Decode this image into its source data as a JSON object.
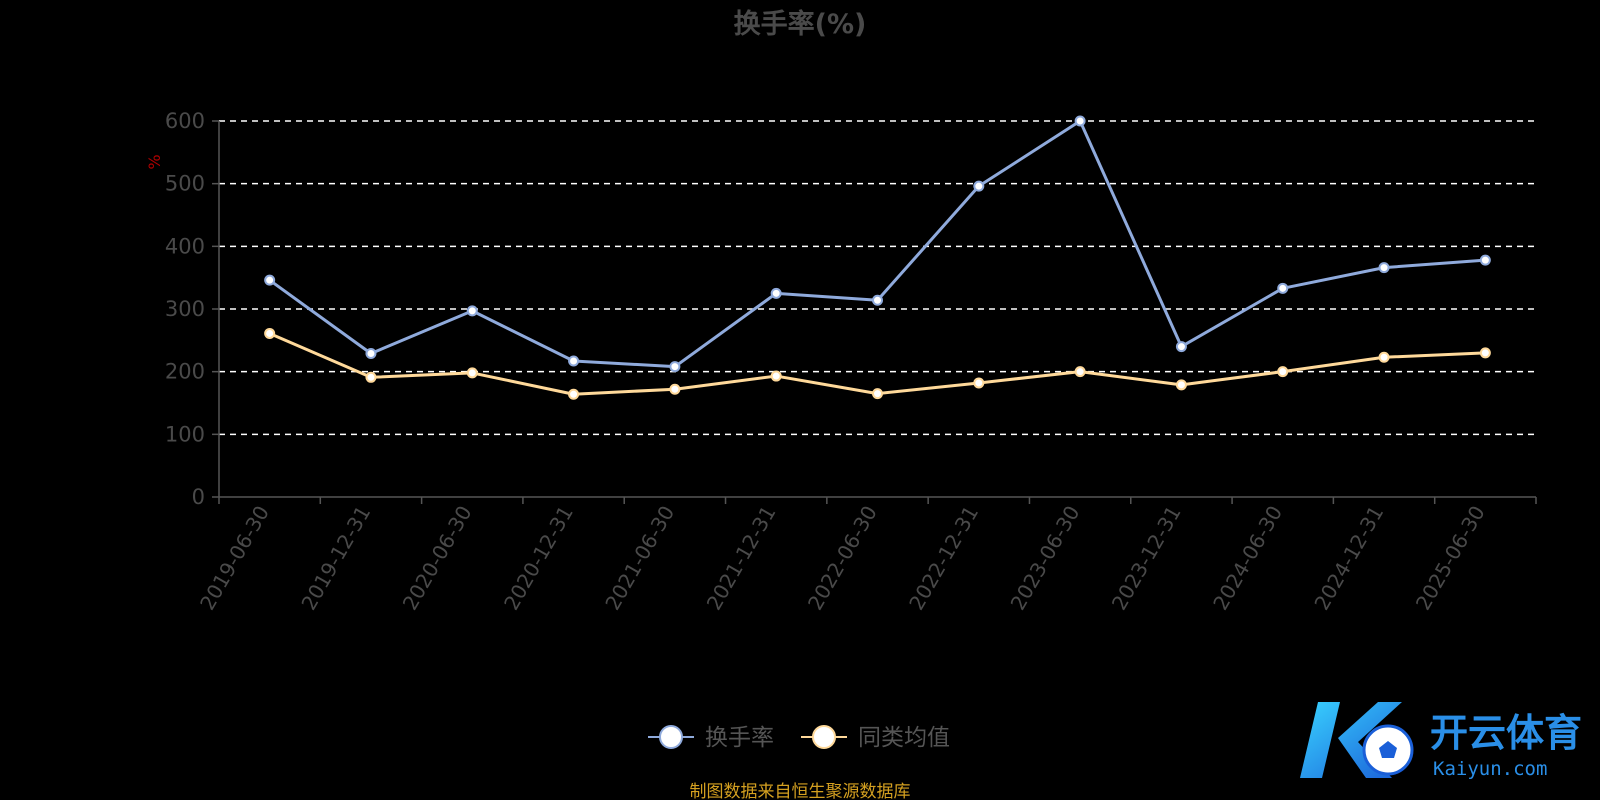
{
  "chart_data": {
    "type": "line",
    "title": "换手率(%)",
    "ylabel": "%",
    "ylim": [
      0,
      600
    ],
    "y_ticks": [
      "0",
      "100",
      "200",
      "300",
      "400",
      "500",
      "600"
    ],
    "grid": true,
    "legend_position": "bottom",
    "categories": [
      "2019-06-30",
      "2019-12-31",
      "2020-06-30",
      "2020-12-31",
      "2021-06-30",
      "2021-12-31",
      "2022-06-30",
      "2022-12-31",
      "2023-06-30",
      "2023-12-31",
      "2024-06-30",
      "2024-12-31",
      "2025-06-30"
    ],
    "series": [
      {
        "name": "换手率",
        "color": "#8faadc",
        "values": [
          346,
          229,
          297,
          217,
          208,
          325,
          314,
          496,
          600,
          240,
          333,
          366,
          378
        ]
      },
      {
        "name": "同类均值",
        "color": "#ffd99a",
        "values": [
          261,
          191,
          198,
          164,
          172,
          193,
          165,
          182,
          200,
          179,
          200,
          223,
          230
        ]
      }
    ]
  },
  "source_note": "制图数据来自恒生聚源数据库",
  "watermark": {
    "cn": "开云体育",
    "en": "Kaiyun.com"
  }
}
